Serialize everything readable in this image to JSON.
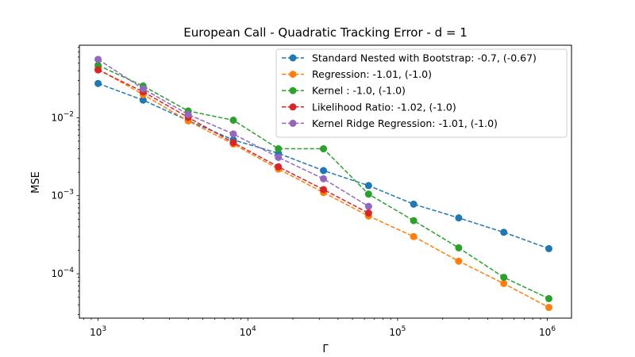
{
  "chart_data": {
    "type": "line",
    "title": "European Call - Quadratic Tracking Error - d = 1",
    "xlabel": "Γ",
    "ylabel": "MSE",
    "xscale": "log",
    "yscale": "log",
    "xlim": [
      750,
      1450000
    ],
    "ylim": [
      2.7e-05,
      0.085
    ],
    "x_ticks": [
      {
        "value": 1000,
        "base": "10",
        "exp": "3"
      },
      {
        "value": 10000,
        "base": "10",
        "exp": "4"
      },
      {
        "value": 100000,
        "base": "10",
        "exp": "5"
      },
      {
        "value": 1000000,
        "base": "10",
        "exp": "6"
      }
    ],
    "y_ticks": [
      {
        "value": 0.0001,
        "base": "10",
        "exp": "−4"
      },
      {
        "value": 0.001,
        "base": "10",
        "exp": "−3"
      },
      {
        "value": 0.01,
        "base": "10",
        "exp": "−2"
      }
    ],
    "grid": false,
    "legend_position": "top-right",
    "series": [
      {
        "name": "Standard Nested with Bootstrap: -0.7, (-0.67)",
        "color": "#1f77b4",
        "x": [
          1000,
          2000,
          4000,
          8000,
          16000,
          32000,
          64000,
          128000,
          256000,
          512000,
          1024000
        ],
        "y": [
          0.0275,
          0.0168,
          0.0092,
          0.0052,
          0.0035,
          0.0021,
          0.00135,
          0.00078,
          0.00052,
          0.00034,
          0.00021
        ]
      },
      {
        "name": "Regression: -1.01, (-1.0)",
        "color": "#ff7f0e",
        "x": [
          1000,
          2000,
          4000,
          8000,
          16000,
          32000,
          64000,
          128000,
          256000,
          512000,
          1024000
        ],
        "y": [
          0.042,
          0.0198,
          0.0091,
          0.0046,
          0.0022,
          0.0011,
          0.00055,
          0.0003,
          0.000145,
          7.5e-05,
          3.7e-05
        ]
      },
      {
        "name": "Kernel : -1.0, (-1.0)",
        "color": "#2ca02c",
        "x": [
          1000,
          2000,
          4000,
          8000,
          16000,
          32000,
          64000,
          128000,
          256000,
          512000,
          1024000
        ],
        "y": [
          0.047,
          0.0255,
          0.0122,
          0.0093,
          0.004,
          0.004,
          0.00105,
          0.00048,
          0.000215,
          9e-05,
          4.8e-05
        ]
      },
      {
        "name": "Likelihood Ratio: -1.02, (-1.0)",
        "color": "#d62728",
        "x": [
          1000,
          2000,
          4000,
          8000,
          16000,
          32000,
          64000
        ],
        "y": [
          0.041,
          0.0215,
          0.0101,
          0.0048,
          0.00235,
          0.0012,
          0.0006
        ]
      },
      {
        "name": "Kernel Ridge Regression: -1.01, (-1.0)",
        "color": "#9467bd",
        "x": [
          1000,
          2000,
          4000,
          8000,
          16000,
          32000,
          64000
        ],
        "y": [
          0.056,
          0.0235,
          0.011,
          0.0062,
          0.0031,
          0.00165,
          0.00073
        ]
      }
    ]
  }
}
